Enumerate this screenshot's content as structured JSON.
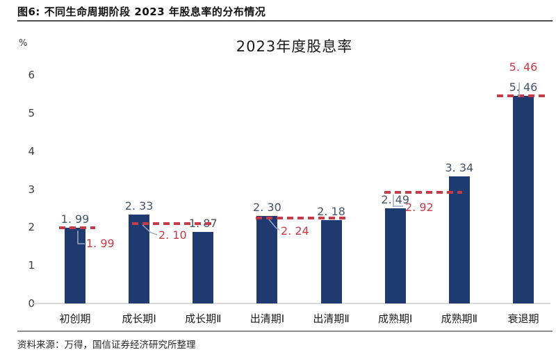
{
  "page": {
    "figure_title": "图6: 不同生命周期阶段 2023 年股息率的分布情况",
    "source_note": "资料来源：万得，国信证券经济研究所整理"
  },
  "colors": {
    "bar": "#1e3a6e",
    "bar_label": "#44546a",
    "reference": "#c43b4a",
    "leader_line": "#9aa9c4",
    "axis_line": "#d9d9d9"
  },
  "chart_data": {
    "type": "bar",
    "title": "2023年度股息率",
    "ylabel": "%",
    "xlabel": "",
    "ylim": [
      0,
      6
    ],
    "yticks": [
      0,
      1,
      2,
      3,
      4,
      5,
      6
    ],
    "grid": false,
    "legend": "none",
    "categories": [
      "初创期",
      "成长期Ⅰ",
      "成长期Ⅱ",
      "出清期Ⅰ",
      "出清期Ⅱ",
      "成熟期Ⅰ",
      "成熟期Ⅱ",
      "衰退期"
    ],
    "series": [
      {
        "name": "2023年度股息率",
        "type": "bar",
        "values": [
          1.99,
          2.33,
          1.87,
          2.3,
          2.18,
          2.49,
          3.34,
          5.46
        ],
        "value_labels": [
          "1. 99",
          "2. 33",
          "1. 87",
          "2. 30",
          "2. 18",
          "2. 49",
          "3. 34",
          "5. 46"
        ]
      }
    ],
    "reference_lines": [
      {
        "value": 1.99,
        "label": "1. 99",
        "style": "dashed",
        "category_span": [
          0,
          0
        ]
      },
      {
        "value": 2.1,
        "label": "2. 10",
        "style": "dashed",
        "category_span": [
          1,
          2
        ]
      },
      {
        "value": 2.24,
        "label": "2. 24",
        "style": "dashed",
        "category_span": [
          3,
          4
        ]
      },
      {
        "value": 2.92,
        "label": "2. 92",
        "style": "dashed",
        "category_span": [
          5,
          6
        ]
      },
      {
        "value": 5.46,
        "label": "5. 46",
        "style": "dashed",
        "category_span": [
          7,
          7
        ]
      }
    ]
  }
}
